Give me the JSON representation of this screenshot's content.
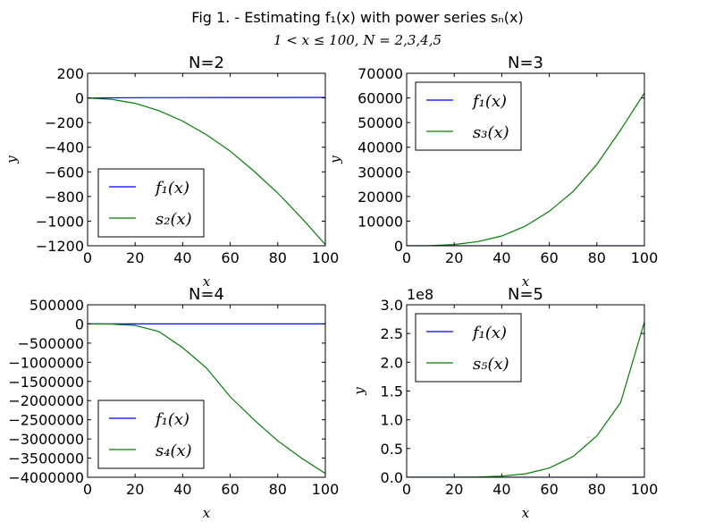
{
  "figure": {
    "title": "Fig 1. - Estimating f₁(x) with power series sₙ(x)",
    "subtitle": "1 < x ≤ 100, N = 2,3,4,5"
  },
  "chart_data": [
    {
      "type": "line",
      "title": "N=2",
      "xlabel": "x",
      "ylabel": "y",
      "xlim": [
        0,
        100
      ],
      "ylim": [
        -1200,
        200
      ],
      "xticks": [
        0,
        20,
        40,
        60,
        80,
        100
      ],
      "yticks": [
        200,
        0,
        -200,
        -400,
        -600,
        -800,
        -1000,
        -1200
      ],
      "ytick_labels": [
        "200",
        "0",
        "−200",
        "−400",
        "−600",
        "−800",
        "−1000",
        "−1200"
      ],
      "legend_position": "lower-left",
      "series": [
        {
          "name": "f₁(x)",
          "color": "#0000ff",
          "x": [
            0,
            20,
            40,
            60,
            80,
            100
          ],
          "y": [
            0,
            2.2,
            2.9,
            3.4,
            3.7,
            3.9
          ]
        },
        {
          "name": "s₂(x)",
          "color": "#008000",
          "x": [
            0,
            10,
            20,
            30,
            40,
            50,
            60,
            70,
            80,
            90,
            100
          ],
          "y": [
            0,
            -11,
            -44,
            -103,
            -188,
            -298,
            -432,
            -594,
            -772,
            -974,
            -1190
          ]
        }
      ]
    },
    {
      "type": "line",
      "title": "N=3",
      "xlabel": "x",
      "ylabel": "y",
      "xlim": [
        0,
        100
      ],
      "ylim": [
        0,
        70000
      ],
      "xticks": [
        0,
        20,
        40,
        60,
        80,
        100
      ],
      "yticks": [
        0,
        10000,
        20000,
        30000,
        40000,
        50000,
        60000,
        70000
      ],
      "ytick_labels": [
        "0",
        "10000",
        "20000",
        "30000",
        "40000",
        "50000",
        "60000",
        "70000"
      ],
      "legend_position": "top-left",
      "series": [
        {
          "name": "f₁(x)",
          "color": "#0000ff",
          "x": [
            0,
            20,
            40,
            60,
            80,
            100
          ],
          "y": [
            0,
            2.2,
            2.9,
            3.4,
            3.7,
            3.9
          ]
        },
        {
          "name": "s₃(x)",
          "color": "#008000",
          "x": [
            0,
            10,
            20,
            30,
            40,
            50,
            60,
            70,
            80,
            90,
            100
          ],
          "y": [
            0,
            60,
            500,
            1700,
            4000,
            8000,
            14000,
            22000,
            33000,
            47000,
            62000
          ]
        }
      ]
    },
    {
      "type": "line",
      "title": "N=4",
      "xlabel": "x",
      "ylabel": "",
      "xlim": [
        0,
        100
      ],
      "ylim": [
        -4000000,
        500000
      ],
      "xticks": [
        0,
        20,
        40,
        60,
        80,
        100
      ],
      "yticks": [
        500000,
        0,
        -500000,
        -1000000,
        -1500000,
        -2000000,
        -2500000,
        -3000000,
        -3500000,
        -4000000
      ],
      "ytick_labels": [
        "500000",
        "0",
        "−500000",
        "−1000000",
        "−1500000",
        "−2000000",
        "−2500000",
        "−3000000",
        "−3500000",
        "−4000000"
      ],
      "legend_position": "lower-left",
      "series": [
        {
          "name": "f₁(x)",
          "color": "#0000ff",
          "x": [
            0,
            20,
            40,
            60,
            80,
            100
          ],
          "y": [
            0,
            2.2,
            2.9,
            3.4,
            3.7,
            3.9
          ]
        },
        {
          "name": "s₄(x)",
          "color": "#008000",
          "x": [
            0,
            10,
            20,
            30,
            40,
            50,
            60,
            70,
            80,
            90,
            100
          ],
          "y": [
            0,
            -2600,
            -38000,
            -196000,
            -620000,
            -1150000,
            -1900000,
            -2500000,
            -3050000,
            -3500000,
            -3900000
          ]
        }
      ]
    },
    {
      "type": "line",
      "title": "N=5",
      "xlabel": "x",
      "ylabel": "y",
      "xlim": [
        0,
        100
      ],
      "ylim": [
        0,
        3.0
      ],
      "y_multiplier": "1e8",
      "xticks": [
        0,
        20,
        40,
        60,
        80,
        100
      ],
      "yticks": [
        0,
        0.5,
        1.0,
        1.5,
        2.0,
        2.5,
        3.0
      ],
      "ytick_labels": [
        "0.0",
        "0.5",
        "1.0",
        "1.5",
        "2.0",
        "2.5",
        "3.0"
      ],
      "legend_position": "top-left",
      "series": [
        {
          "name": "f₁(x)",
          "color": "#0000ff",
          "x": [
            0,
            20,
            40,
            60,
            80,
            100
          ],
          "y": [
            0,
            0,
            0,
            0,
            0,
            0
          ]
        },
        {
          "name": "s₅(x)",
          "color": "#008000",
          "x": [
            0,
            10,
            20,
            30,
            40,
            50,
            60,
            70,
            80,
            90,
            100
          ],
          "y": [
            0,
            2e-05,
            0.0006,
            0.005,
            0.02,
            0.06,
            0.16,
            0.36,
            0.72,
            1.3,
            2.7
          ]
        }
      ]
    }
  ]
}
